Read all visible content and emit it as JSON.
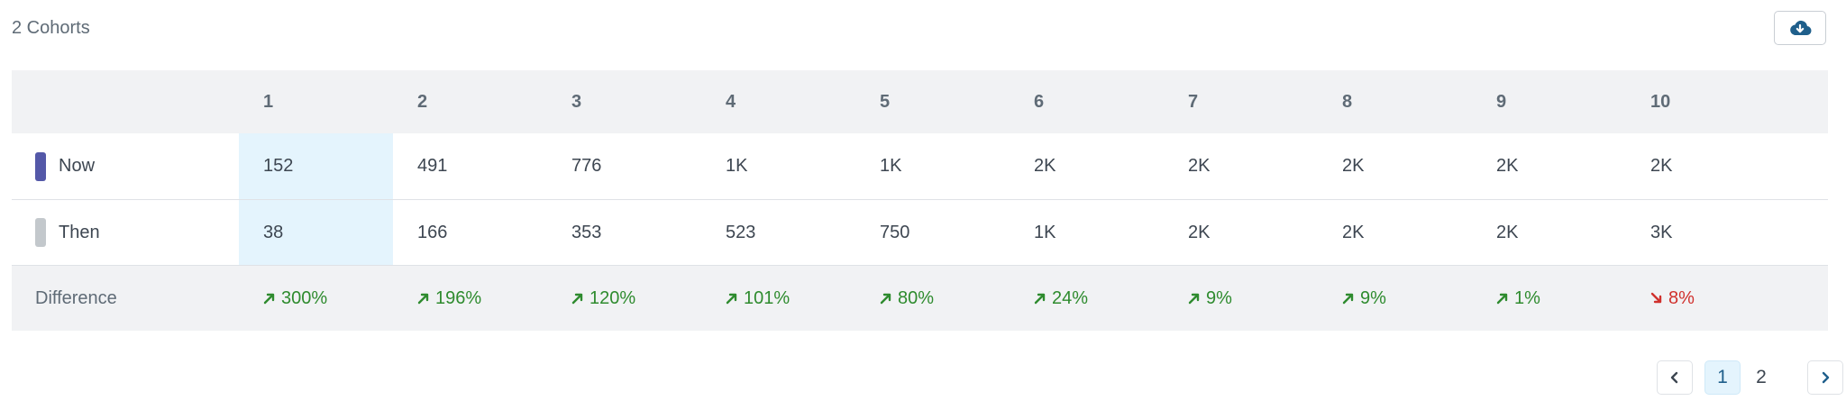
{
  "header": {
    "cohort_count": "2 Cohorts",
    "download_icon": "cloud-download-icon"
  },
  "table": {
    "columns": [
      "1",
      "2",
      "3",
      "4",
      "5",
      "6",
      "7",
      "8",
      "9",
      "10"
    ],
    "rows": [
      {
        "label": "Now",
        "color": "#5458a8",
        "values": [
          "152",
          "491",
          "776",
          "1K",
          "1K",
          "2K",
          "2K",
          "2K",
          "2K",
          "2K"
        ]
      },
      {
        "label": "Then",
        "color": "#c3c8cc",
        "values": [
          "38",
          "166",
          "353",
          "523",
          "750",
          "1K",
          "2K",
          "2K",
          "2K",
          "3K"
        ]
      }
    ],
    "difference": {
      "label": "Difference",
      "values": [
        {
          "text": "300%",
          "dir": "up"
        },
        {
          "text": "196%",
          "dir": "up"
        },
        {
          "text": "120%",
          "dir": "up"
        },
        {
          "text": "101%",
          "dir": "up"
        },
        {
          "text": "80%",
          "dir": "up"
        },
        {
          "text": "24%",
          "dir": "up"
        },
        {
          "text": "9%",
          "dir": "up"
        },
        {
          "text": "9%",
          "dir": "up"
        },
        {
          "text": "1%",
          "dir": "up"
        },
        {
          "text": "8%",
          "dir": "down"
        }
      ],
      "up_color": "#2e8b2e",
      "down_color": "#d0312d"
    }
  },
  "pagination": {
    "pages": [
      "1",
      "2"
    ],
    "current": "1",
    "prev_icon": "chevron-left-icon",
    "next_icon": "chevron-right-icon"
  }
}
